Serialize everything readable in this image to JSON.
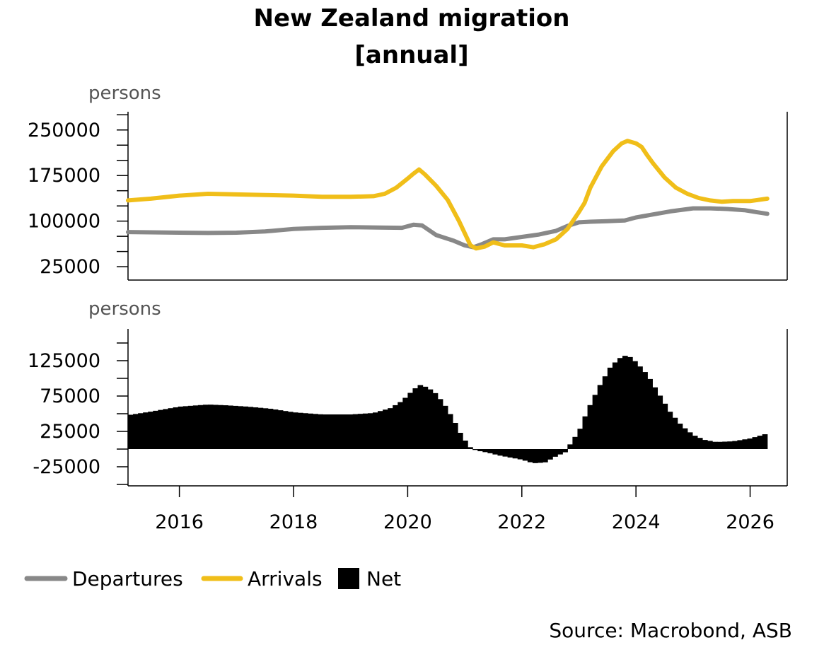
{
  "chart_data": {
    "title": "New Zealand migration",
    "subtitle": "[annual]",
    "source": "Source: Macrobond, ASB",
    "xlim": [
      2015.1,
      2026.65
    ],
    "x_ticks": [
      2016,
      2018,
      2020,
      2022,
      2024,
      2026
    ],
    "colors": {
      "Departures": "#888888",
      "Arrivals": "#F0BE19",
      "Net": "#000000"
    },
    "legend_position": "bottom-left",
    "legend": [
      {
        "name": "Departures",
        "type": "line"
      },
      {
        "name": "Arrivals",
        "type": "line"
      },
      {
        "name": "Net",
        "type": "bar"
      }
    ],
    "panels": [
      {
        "type": "line",
        "ylabel": "persons",
        "ylim": [
          3000,
          280000
        ],
        "yticks": [
          25000,
          100000,
          175000,
          250000
        ],
        "minor_step": 25000,
        "series": [
          {
            "name": "Departures",
            "x": [
              2015.1,
              2016.0,
              2016.5,
              2017.0,
              2017.5,
              2018.0,
              2018.5,
              2019.0,
              2019.5,
              2019.9,
              2020.1,
              2020.25,
              2020.5,
              2020.8,
              2021.0,
              2021.15,
              2021.3,
              2021.5,
              2021.7,
              2022.0,
              2022.3,
              2022.6,
              2022.8,
              2023.0,
              2023.2,
              2023.5,
              2023.8,
              2024.0,
              2024.3,
              2024.6,
              2025.0,
              2025.3,
              2025.6,
              2025.9,
              2026.1,
              2026.3
            ],
            "values": [
              82000,
              81000,
              80500,
              81000,
              83000,
              87000,
              89000,
              90000,
              89500,
              89000,
              94000,
              93000,
              77000,
              68000,
              60000,
              57000,
              62000,
              70000,
              70000,
              74000,
              78000,
              84000,
              92000,
              98000,
              99000,
              100000,
              101000,
              106000,
              111000,
              116000,
              121000,
              121000,
              120000,
              118000,
              115000,
              112000
            ]
          },
          {
            "name": "Arrivals",
            "x": [
              2015.1,
              2015.5,
              2016.0,
              2016.5,
              2017.0,
              2017.5,
              2018.0,
              2018.5,
              2019.0,
              2019.4,
              2019.6,
              2019.8,
              2020.0,
              2020.1,
              2020.2,
              2020.3,
              2020.5,
              2020.7,
              2020.9,
              2021.1,
              2021.2,
              2021.35,
              2021.5,
              2021.7,
              2022.0,
              2022.2,
              2022.4,
              2022.6,
              2022.8,
              2023.0,
              2023.1,
              2023.2,
              2023.4,
              2023.6,
              2023.75,
              2023.85,
              2024.0,
              2024.1,
              2024.2,
              2024.3,
              2024.5,
              2024.7,
              2024.9,
              2025.1,
              2025.3,
              2025.5,
              2025.7,
              2026.0,
              2026.3
            ],
            "values": [
              134000,
              137000,
              142000,
              145000,
              144000,
              143000,
              142000,
              140000,
              140000,
              141000,
              145000,
              155000,
              170000,
              178000,
              185000,
              177000,
              158000,
              135000,
              100000,
              60000,
              55000,
              58000,
              65000,
              60000,
              60000,
              57000,
              62000,
              70000,
              87000,
              115000,
              130000,
              155000,
              190000,
              215000,
              228000,
              232000,
              228000,
              222000,
              208000,
              195000,
              172000,
              155000,
              145000,
              138000,
              134000,
              132000,
              133000,
              133000,
              137000
            ]
          }
        ]
      },
      {
        "type": "bar",
        "ylabel": "persons",
        "ylim": [
          -52000,
          170000
        ],
        "yticks": [
          -25000,
          25000,
          75000,
          125000
        ],
        "minor_step": 25000,
        "series": [
          {
            "name": "Net",
            "x": [
              2015.1,
              2015.5,
              2016.0,
              2016.5,
              2016.8,
              2017.2,
              2017.6,
              2018.0,
              2018.5,
              2019.0,
              2019.4,
              2019.7,
              2019.9,
              2020.05,
              2020.2,
              2020.35,
              2020.5,
              2020.65,
              2020.8,
              2020.95,
              2021.1,
              2021.2,
              2021.4,
              2021.6,
              2021.8,
              2022.0,
              2022.2,
              2022.4,
              2022.6,
              2022.8,
              2022.85,
              2023.0,
              2023.15,
              2023.35,
              2023.55,
              2023.7,
              2023.8,
              2023.9,
              2024.0,
              2024.2,
              2024.4,
              2024.6,
              2024.8,
              2025.0,
              2025.2,
              2025.4,
              2025.7,
              2026.0,
              2026.3
            ],
            "values": [
              48000,
              53000,
              60000,
              63000,
              62000,
              60000,
              57000,
              52000,
              49000,
              49000,
              51000,
              58000,
              68000,
              80000,
              91000,
              87000,
              78000,
              62000,
              42000,
              18000,
              2000,
              -2000,
              -5000,
              -9000,
              -12000,
              -15000,
              -20000,
              -19000,
              -10000,
              -3000,
              8000,
              25000,
              55000,
              88000,
              116000,
              128000,
              132000,
              130000,
              123000,
              105000,
              78000,
              52000,
              33000,
              20000,
              13000,
              10000,
              11000,
              15000,
              22000
            ]
          }
        ]
      }
    ]
  }
}
